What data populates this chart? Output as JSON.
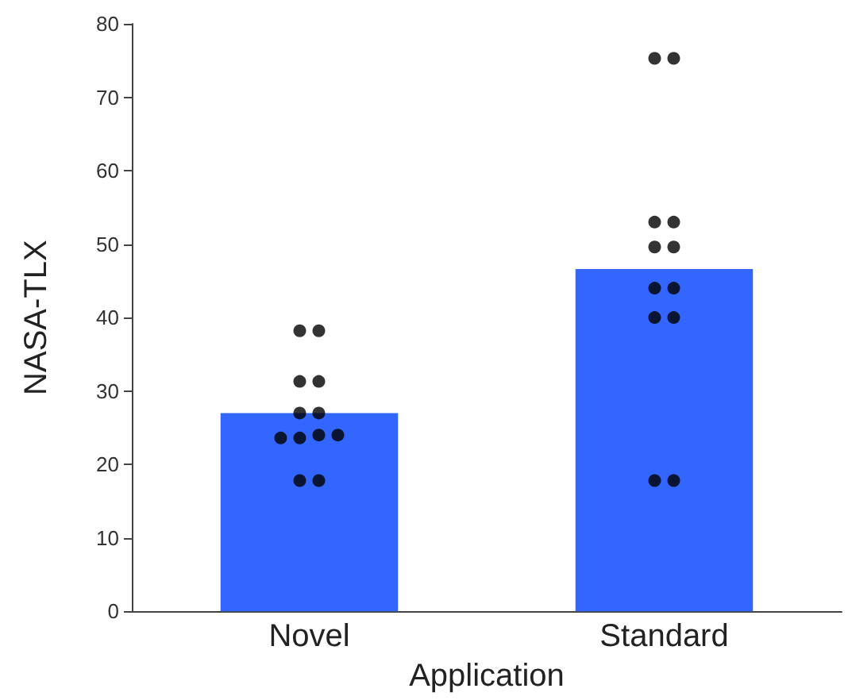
{
  "chart_data": {
    "type": "bar",
    "xlabel": "Application",
    "ylabel": "NASA-TLX",
    "categories": [
      "Novel",
      "Standard"
    ],
    "ylim": [
      0,
      80
    ],
    "yticks": [
      0,
      10,
      20,
      30,
      40,
      50,
      60,
      70,
      80
    ],
    "grid": false,
    "series": [
      {
        "color": "#3366ff",
        "values": [
          27,
          46.6
        ]
      },
      {
        "type": "scatter",
        "color": "#000000",
        "marker": "circle",
        "x": [
          "Novel",
          "Novel",
          "Novel",
          "Novel",
          "Novel",
          "Novel",
          "Novel",
          "Novel",
          "Novel",
          "Novel",
          "Novel",
          "Novel"
        ],
        "values": [
          38.2,
          38.2,
          31.3,
          31.3,
          27,
          27,
          23.6,
          23.6,
          24,
          24,
          17.8,
          17.8
        ]
      },
      {
        "type": "scatter",
        "color": "#000000",
        "marker": "circle",
        "x": [
          "Standard",
          "Standard",
          "Standard",
          "Standard",
          "Standard",
          "Standard",
          "Standard",
          "Standard",
          "Standard",
          "Standard",
          "Standard",
          "Standard"
        ],
        "values": [
          75.3,
          75.3,
          53,
          53,
          49.6,
          49.6,
          44,
          44,
          40,
          40,
          17.8,
          17.8
        ]
      }
    ]
  }
}
